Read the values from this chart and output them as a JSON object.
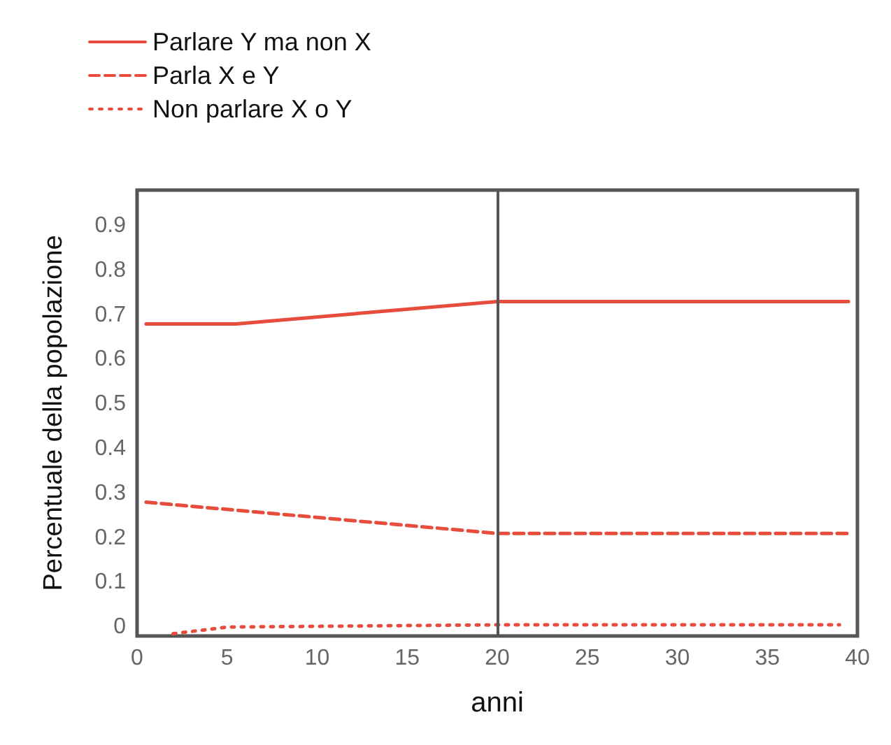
{
  "chart_data": {
    "type": "line",
    "xlabel": "anni",
    "ylabel": "Percentuale della popolazione",
    "xlim": [
      0,
      40
    ],
    "xticks": [
      0,
      5,
      10,
      15,
      20,
      25,
      30,
      35,
      40
    ],
    "ylim": [
      -0.02,
      0.98
    ],
    "yticks": [
      0,
      0.1,
      0.2,
      0.3,
      0.4,
      0.5,
      0.6,
      0.7,
      0.8,
      0.9
    ],
    "grid": false,
    "legend": "top left",
    "marker": "none",
    "ref_lines": [
      {
        "axis": "x",
        "value": 20,
        "color": "#555555",
        "line_style": "solid"
      }
    ],
    "series": [
      {
        "name": "Parlare Y ma non X",
        "color": "#e84c3d",
        "line_style": "solid",
        "x": [
          0.5,
          5.5,
          20,
          39.5
        ],
        "values": [
          0.68,
          0.68,
          0.73,
          0.73
        ]
      },
      {
        "name": "Parla X e Y",
        "color": "#e84c3d",
        "line_style": "dashed",
        "x": [
          0.5,
          20,
          39.5
        ],
        "values": [
          0.28,
          0.21,
          0.21
        ]
      },
      {
        "name": "Non parlare X o Y",
        "color": "#e84c3d",
        "line_style": "dotted",
        "x": [
          2,
          5,
          20,
          39
        ],
        "values": [
          -0.015,
          0,
          0.005,
          0.005
        ]
      }
    ]
  }
}
